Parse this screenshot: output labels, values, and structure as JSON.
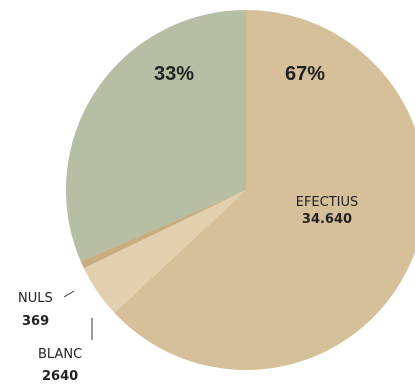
{
  "chart_data": {
    "type": "pie",
    "slices": [
      {
        "label": "EFECTIUS",
        "value_text": "34.640",
        "value": 34640,
        "percent_text": "67%",
        "color": "#d5c09a"
      },
      {
        "label": "BLANC",
        "value_text": "2640",
        "value": 2640,
        "color": "#e2cfae"
      },
      {
        "label": "NULS",
        "value_text": "369",
        "value": 369,
        "color": "#c8ad7f"
      },
      {
        "label": "",
        "value_text": "",
        "value": 17300,
        "percent_text": "33%",
        "color": "#b6bea4"
      }
    ]
  }
}
